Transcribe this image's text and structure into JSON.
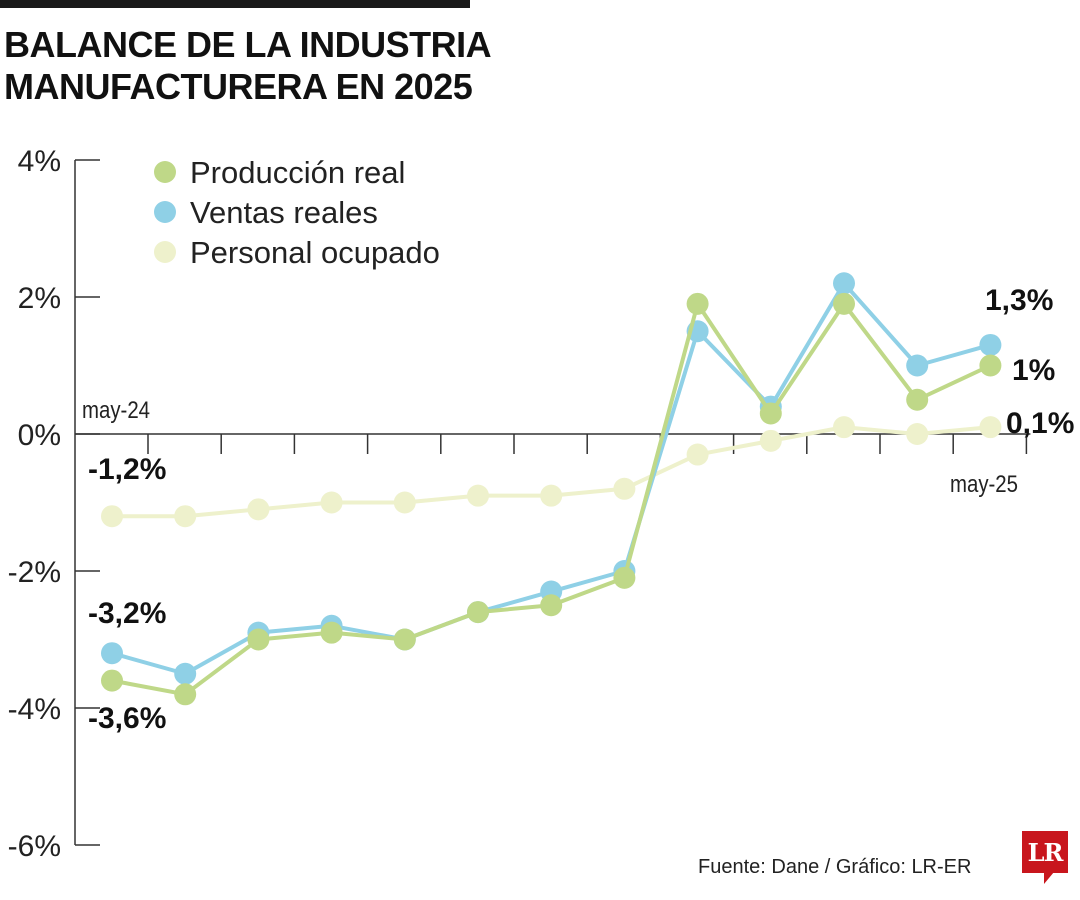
{
  "title": {
    "line1": "BALANCE DE LA INDUSTRIA",
    "line2": "MANUFACTURERA EN 2025"
  },
  "source": "Fuente: Dane / Gráfico: LR-ER",
  "logo": "LR",
  "colors": {
    "produccion": "#bfd888",
    "ventas": "#8fd0e6",
    "personal": "#eef1cc",
    "axis": "#333333"
  },
  "chart_data": {
    "type": "line",
    "title": "BALANCE DE LA INDUSTRIA MANUFACTURERA EN 2025",
    "xlabel": "",
    "ylabel": "",
    "ylim": [
      -6,
      4
    ],
    "ytick_values": [
      4,
      2,
      0,
      -2,
      -4,
      -6
    ],
    "ytick_labels": [
      "4%",
      "2%",
      "0%",
      "-2%",
      "-4%",
      "-6%"
    ],
    "x_start_label": "may-24",
    "x_end_label": "may-25",
    "x": [
      0,
      1,
      2,
      3,
      4,
      5,
      6,
      7,
      8,
      9,
      10,
      11,
      12
    ],
    "series": [
      {
        "name": "Personal ocupado",
        "key": "personal",
        "values": [
          -1.2,
          -1.2,
          -1.1,
          -1.0,
          -1.0,
          -0.9,
          -0.9,
          -0.8,
          -0.3,
          -0.1,
          0.1,
          0.0,
          0.1
        ],
        "start_label": "-1,2%",
        "end_label": "0,1%"
      },
      {
        "name": "Ventas reales",
        "key": "ventas",
        "values": [
          -3.2,
          -3.5,
          -2.9,
          -2.8,
          -3.0,
          -2.6,
          -2.3,
          -2.0,
          1.5,
          0.4,
          2.2,
          1.0,
          1.3
        ],
        "start_label": "-3,2%",
        "end_label": "1,3%"
      },
      {
        "name": "Producción real",
        "key": "produccion",
        "values": [
          -3.6,
          -3.8,
          -3.0,
          -2.9,
          -3.0,
          -2.6,
          -2.5,
          -2.1,
          1.9,
          0.3,
          1.9,
          0.5,
          1.0
        ],
        "start_label": "-3,6%",
        "end_label": "1%"
      }
    ],
    "legend": [
      "Producción real",
      "Ventas reales",
      "Personal ocupado"
    ]
  }
}
